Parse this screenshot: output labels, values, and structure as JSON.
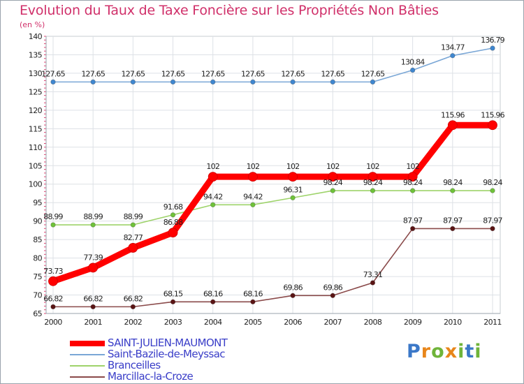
{
  "header": {
    "title": "Evolution du Taux de Taxe Foncière sur les Propriétés Non Bâties",
    "subtitle": "(en %)"
  },
  "chart_data": {
    "type": "line",
    "title": "Evolution du Taux de Taxe Foncière sur les Propriétés Non Bâties",
    "ylabel": "(en %)",
    "xlabel": "",
    "categories": [
      "2000",
      "2001",
      "2002",
      "2003",
      "2004",
      "2005",
      "2006",
      "2007",
      "2008",
      "2009",
      "2010",
      "2011"
    ],
    "ylim": [
      65,
      140
    ],
    "yticks": [
      65,
      70,
      75,
      80,
      85,
      90,
      95,
      100,
      105,
      110,
      115,
      120,
      125,
      130,
      135,
      140
    ],
    "grid": true,
    "legend_position": "bottom-left",
    "series": [
      {
        "name": "SAINT-JULIEN-MAUMONT",
        "color": "#ff0000",
        "dot": "#e00000",
        "emphasis": true,
        "values": [
          73.73,
          77.39,
          82.77,
          86.88,
          102,
          102,
          102,
          102,
          102,
          102,
          115.96,
          115.96
        ],
        "labels": [
          "73.73",
          "77.39",
          "82.77",
          "86.88",
          "102",
          "102",
          "102",
          "102",
          "102",
          "102",
          "115.96",
          "115.96"
        ]
      },
      {
        "name": "Saint-Bazile-de-Meyssac",
        "color": "#7aa7d6",
        "dot": "#3f87d0",
        "emphasis": false,
        "values": [
          127.65,
          127.65,
          127.65,
          127.65,
          127.65,
          127.65,
          127.65,
          127.65,
          127.65,
          130.84,
          134.77,
          136.79
        ],
        "labels": [
          "127.65",
          "127.65",
          "127.65",
          "127.65",
          "127.65",
          "127.65",
          "127.65",
          "127.65",
          "127.65",
          "130.84",
          "134.77",
          "136.79"
        ]
      },
      {
        "name": "Branceilles",
        "color": "#9ed36a",
        "dot": "#6fc23a",
        "emphasis": false,
        "values": [
          88.99,
          88.99,
          88.99,
          91.68,
          94.42,
          94.42,
          96.31,
          98.24,
          98.24,
          98.24,
          98.24,
          98.24
        ],
        "labels": [
          "88.99",
          "88.99",
          "88.99",
          "91.68",
          "94.42",
          "94.42",
          "96.31",
          "98.24",
          "98.24",
          "98.24",
          "98.24",
          "98.24"
        ]
      },
      {
        "name": "Marcillac-la-Croze",
        "color": "#8a4a4a",
        "dot": "#5a1414",
        "emphasis": false,
        "values": [
          66.82,
          66.82,
          66.82,
          68.15,
          68.16,
          68.16,
          69.86,
          69.86,
          73.31,
          87.97,
          87.97,
          87.97
        ],
        "labels": [
          "66.82",
          "66.82",
          "66.82",
          "68.15",
          "68.16",
          "68.16",
          "69.86",
          "69.86",
          "73.31",
          "87.97",
          "87.97",
          "87.97"
        ]
      }
    ]
  },
  "branding": {
    "logo": "Proxiti",
    "logo_letters": [
      {
        "ch": "P",
        "color": "#3b78c8"
      },
      {
        "ch": "r",
        "color": "#e8861a"
      },
      {
        "ch": "o",
        "color": "#6fb43a"
      },
      {
        "ch": "x",
        "color": "#e8861a"
      },
      {
        "ch": "i",
        "color": "#6fb43a"
      },
      {
        "ch": "t",
        "color": "#3b78c8"
      },
      {
        "ch": "i",
        "color": "#6fb43a"
      }
    ]
  }
}
